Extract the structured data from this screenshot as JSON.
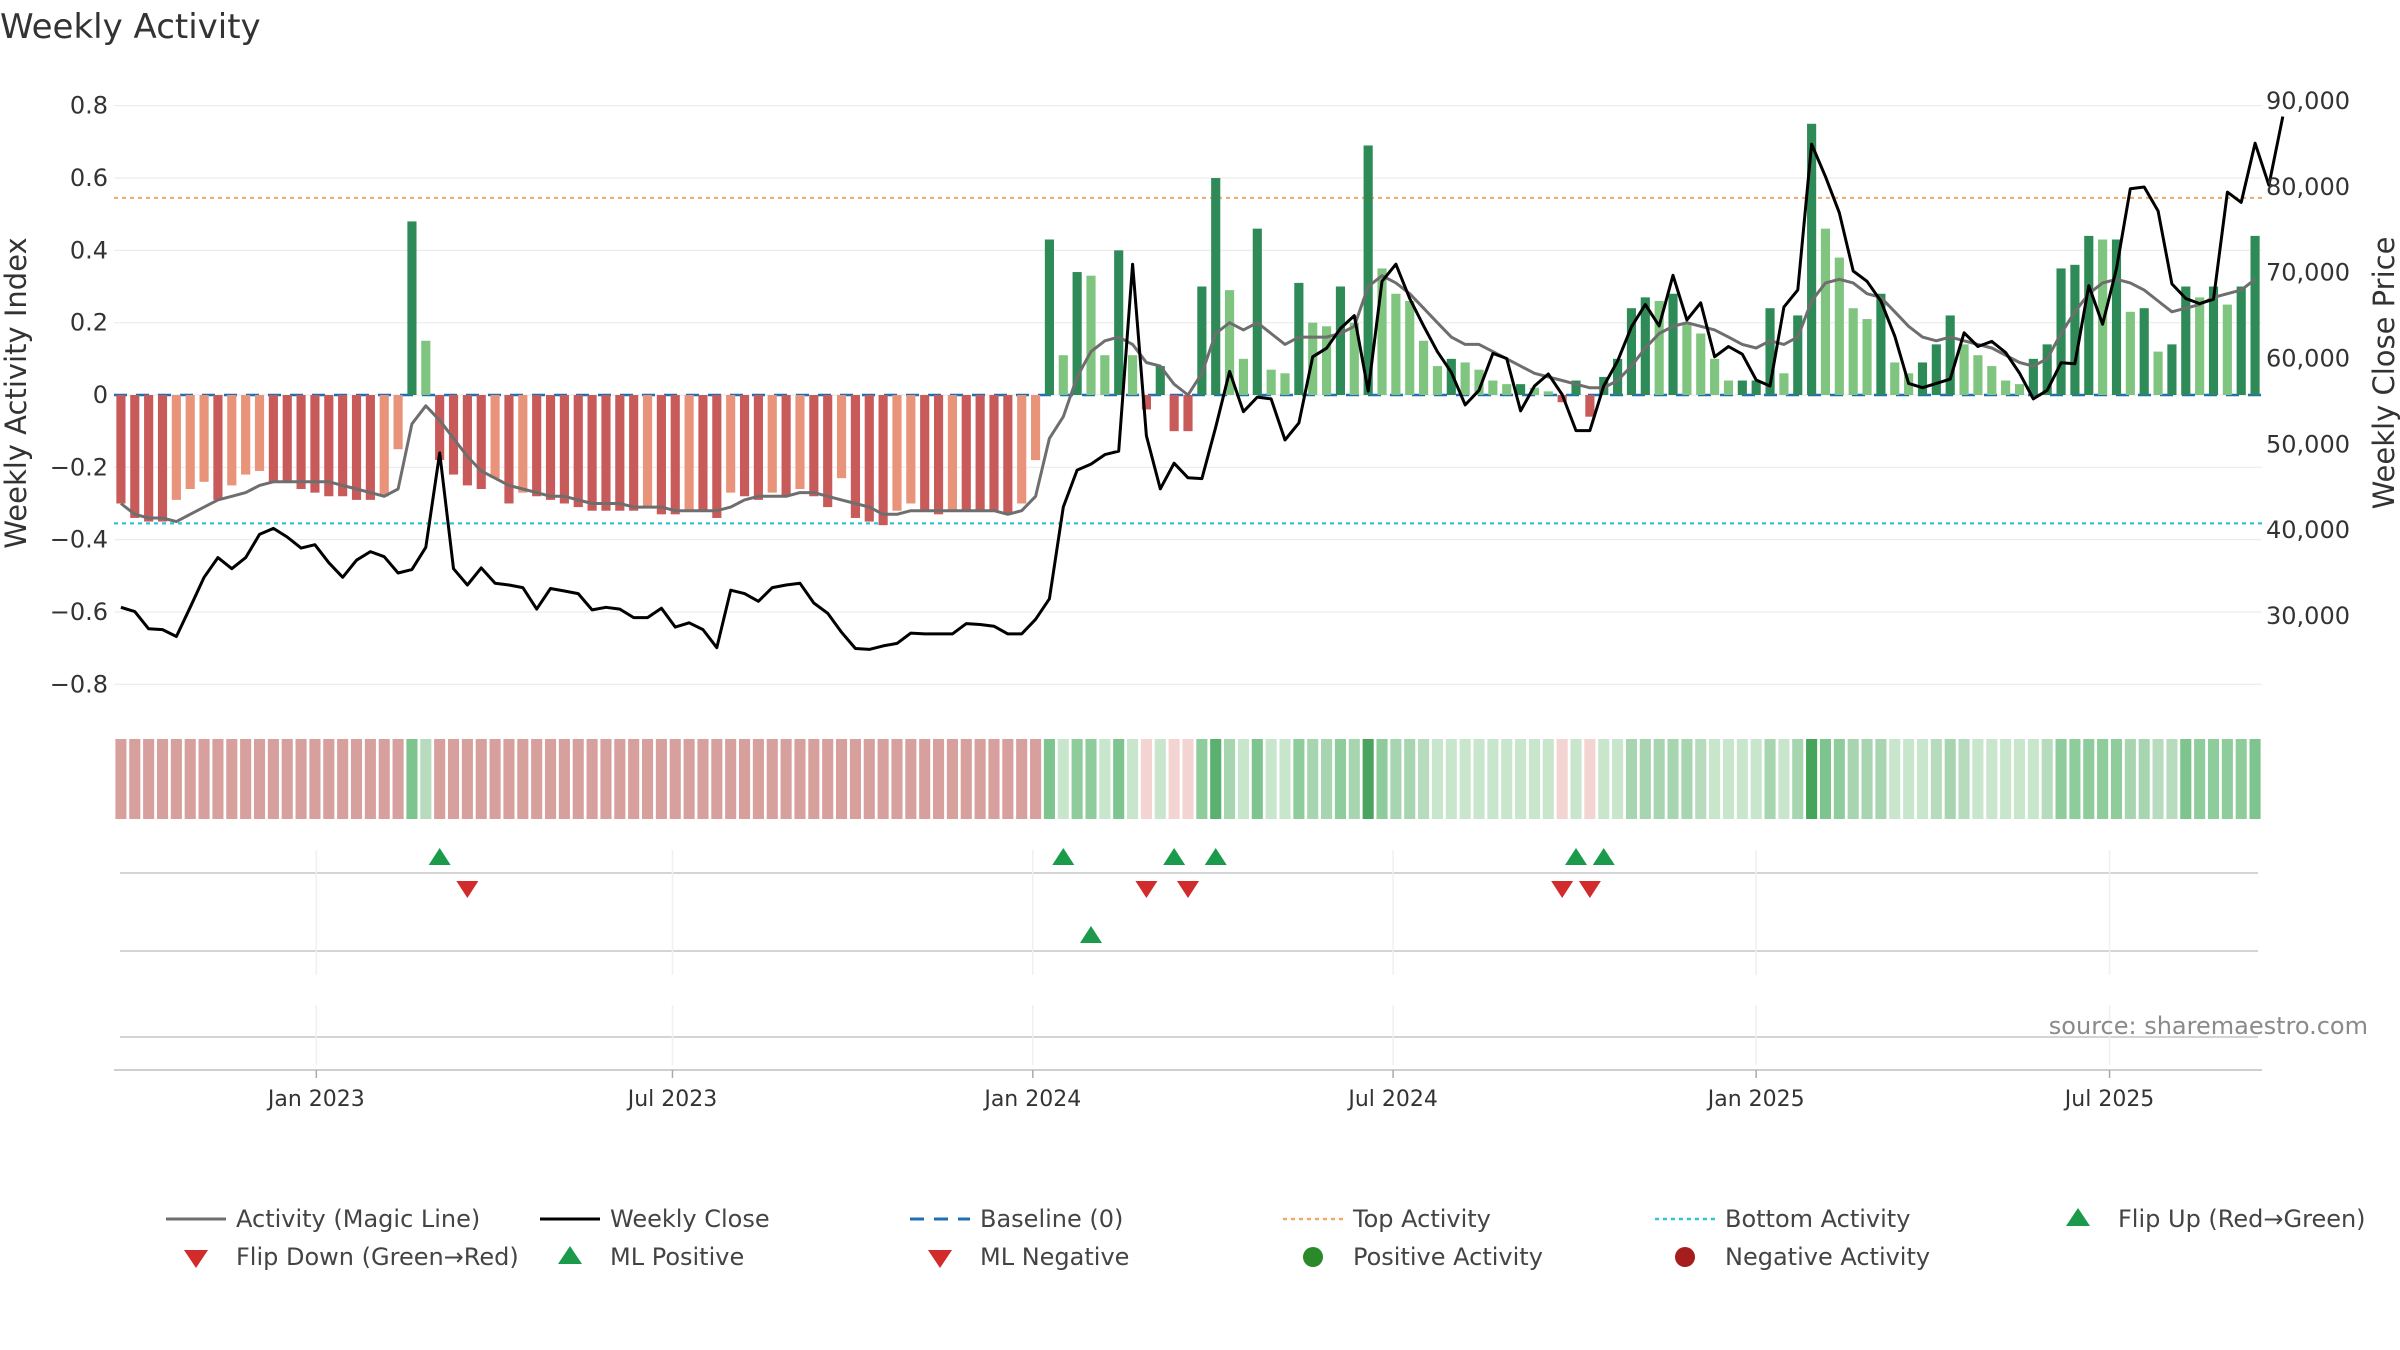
{
  "chart_data": {
    "type": "bar",
    "title": "Weekly Activity",
    "ylabel": "Weekly Activity Index",
    "y2label": "Weekly Close Price",
    "ylim": [
      -0.86,
      0.86
    ],
    "y2lim": [
      19500,
      92000
    ],
    "yticks": [
      {
        "v": 0.8,
        "label": "0.8"
      },
      {
        "v": 0.6,
        "label": "0.6"
      },
      {
        "v": 0.4,
        "label": "0.4"
      },
      {
        "v": 0.2,
        "label": "0.2"
      },
      {
        "v": 0,
        "label": "0"
      },
      {
        "v": -0.2,
        "label": "−0.2"
      },
      {
        "v": -0.4,
        "label": "−0.4"
      },
      {
        "v": -0.6,
        "label": "−0.6"
      },
      {
        "v": -0.8,
        "label": "−0.8"
      }
    ],
    "y2ticks": [
      {
        "v": 90000,
        "label": "90,000"
      },
      {
        "v": 80000,
        "label": "80,000"
      },
      {
        "v": 70000,
        "label": "70,000"
      },
      {
        "v": 60000,
        "label": "60,000"
      },
      {
        "v": 50000,
        "label": "50,000"
      },
      {
        "v": 40000,
        "label": "40,000"
      },
      {
        "v": 30000,
        "label": "30,000"
      }
    ],
    "x_start_week": 0,
    "x_end_week": 155,
    "xticks": [
      {
        "label": "Jan 2023",
        "week": 14.1
      },
      {
        "label": "Jul 2023",
        "week": 39.8
      },
      {
        "label": "Jan 2024",
        "week": 65.8
      },
      {
        "label": "Jul 2024",
        "week": 91.8
      },
      {
        "label": "Jan 2025",
        "week": 118.0
      },
      {
        "label": "Jul 2025",
        "week": 143.5
      }
    ],
    "top_activity": 0.545,
    "bottom_activity": -0.355,
    "baseline": 0,
    "activity": [
      -0.3,
      -0.34,
      -0.35,
      -0.35,
      -0.29,
      -0.26,
      -0.24,
      -0.29,
      -0.25,
      -0.22,
      -0.21,
      -0.24,
      -0.24,
      -0.26,
      -0.27,
      -0.28,
      -0.28,
      -0.29,
      -0.29,
      -0.28,
      -0.15,
      0.48,
      0.15,
      -0.18,
      -0.22,
      -0.25,
      -0.26,
      -0.23,
      -0.3,
      -0.27,
      -0.28,
      -0.29,
      -0.3,
      -0.31,
      -0.32,
      -0.32,
      -0.32,
      -0.32,
      -0.31,
      -0.33,
      -0.33,
      -0.32,
      -0.32,
      -0.34,
      -0.27,
      -0.28,
      -0.29,
      -0.27,
      -0.28,
      -0.26,
      -0.28,
      -0.31,
      -0.23,
      -0.34,
      -0.35,
      -0.36,
      -0.32,
      -0.3,
      -0.32,
      -0.33,
      -0.32,
      -0.32,
      -0.32,
      -0.32,
      -0.33,
      -0.3,
      -0.18,
      0.43,
      0.11,
      0.34,
      0.33,
      0.11,
      0.4,
      0.11,
      -0.04,
      0.08,
      -0.1,
      -0.1,
      0.3,
      0.6,
      0.29,
      0.1,
      0.46,
      0.07,
      0.06,
      0.31,
      0.2,
      0.19,
      0.3,
      0.2,
      0.69,
      0.35,
      0.28,
      0.26,
      0.15,
      0.08,
      0.1,
      0.09,
      0.07,
      0.04,
      0.03,
      0.03,
      0.02,
      0.01,
      -0.02,
      0.04,
      -0.06,
      0.05,
      0.1,
      0.24,
      0.27,
      0.26,
      0.28,
      0.2,
      0.17,
      0.1,
      0.04,
      0.04,
      0.04,
      0.24,
      0.06,
      0.22,
      0.75,
      0.46,
      0.38,
      0.24,
      0.21,
      0.28,
      0.09,
      0.06,
      0.09,
      0.14,
      0.22,
      0.14,
      0.11,
      0.08,
      0.04,
      0.03,
      0.1,
      0.14,
      0.35,
      0.36,
      0.44,
      0.43,
      0.43,
      0.23,
      0.24,
      0.12,
      0.14,
      0.3,
      0.27,
      0.3,
      0.25,
      0.3,
      0.44
    ],
    "magic_line": [
      -0.3,
      -0.33,
      -0.34,
      -0.34,
      -0.35,
      -0.33,
      -0.31,
      -0.29,
      -0.28,
      -0.27,
      -0.25,
      -0.24,
      -0.24,
      -0.24,
      -0.24,
      -0.24,
      -0.25,
      -0.26,
      -0.27,
      -0.28,
      -0.26,
      -0.08,
      -0.03,
      -0.07,
      -0.12,
      -0.17,
      -0.21,
      -0.23,
      -0.25,
      -0.26,
      -0.27,
      -0.28,
      -0.28,
      -0.29,
      -0.3,
      -0.3,
      -0.3,
      -0.31,
      -0.31,
      -0.31,
      -0.32,
      -0.32,
      -0.32,
      -0.32,
      -0.31,
      -0.29,
      -0.28,
      -0.28,
      -0.28,
      -0.27,
      -0.27,
      -0.28,
      -0.29,
      -0.3,
      -0.31,
      -0.33,
      -0.33,
      -0.32,
      -0.32,
      -0.32,
      -0.32,
      -0.32,
      -0.32,
      -0.32,
      -0.33,
      -0.32,
      -0.28,
      -0.12,
      -0.06,
      0.05,
      0.12,
      0.15,
      0.16,
      0.14,
      0.09,
      0.08,
      0.03,
      0.0,
      0.06,
      0.17,
      0.2,
      0.18,
      0.2,
      0.17,
      0.14,
      0.16,
      0.16,
      0.16,
      0.17,
      0.19,
      0.3,
      0.33,
      0.31,
      0.28,
      0.24,
      0.2,
      0.16,
      0.14,
      0.14,
      0.12,
      0.1,
      0.08,
      0.06,
      0.05,
      0.04,
      0.03,
      0.02,
      0.02,
      0.04,
      0.08,
      0.13,
      0.17,
      0.19,
      0.2,
      0.19,
      0.18,
      0.16,
      0.14,
      0.13,
      0.15,
      0.14,
      0.16,
      0.26,
      0.31,
      0.32,
      0.31,
      0.28,
      0.27,
      0.23,
      0.19,
      0.16,
      0.15,
      0.16,
      0.15,
      0.14,
      0.13,
      0.11,
      0.09,
      0.08,
      0.1,
      0.17,
      0.23,
      0.28,
      0.31,
      0.32,
      0.31,
      0.29,
      0.26,
      0.23,
      0.24,
      0.25,
      0.27,
      0.28,
      0.29,
      0.32
    ],
    "weekly_close": [
      31000,
      30500,
      28500,
      28400,
      27600,
      31000,
      34500,
      36800,
      35500,
      36800,
      39500,
      40200,
      39200,
      37900,
      38300,
      36200,
      34500,
      36500,
      37500,
      36900,
      35000,
      35400,
      38000,
      49000,
      35500,
      33600,
      35600,
      33800,
      33600,
      33300,
      30800,
      33200,
      32900,
      32600,
      30700,
      31000,
      30800,
      29800,
      29800,
      30900,
      28700,
      29200,
      28400,
      26300,
      33000,
      32600,
      31700,
      33300,
      33600,
      33800,
      31500,
      30300,
      28100,
      26200,
      26100,
      26500,
      26800,
      28000,
      27900,
      27900,
      27900,
      29100,
      29000,
      28800,
      27900,
      27900,
      29600,
      32000,
      42700,
      47000,
      47700,
      48800,
      49200,
      71000,
      51000,
      44800,
      47800,
      46100,
      46000,
      52000,
      58500,
      53800,
      55500,
      55300,
      50500,
      52500,
      60200,
      61200,
      63500,
      65000,
      56200,
      69000,
      71000,
      67000,
      63800,
      60800,
      58400,
      54600,
      56300,
      60600,
      60000,
      53900,
      56800,
      58200,
      55800,
      51600,
      51600,
      56800,
      59700,
      63700,
      66300,
      63800,
      69700,
      64500,
      66500,
      60200,
      61400,
      60500,
      57500,
      56800,
      66000,
      68000,
      85000,
      81200,
      77000,
      70200,
      69000,
      66700,
      62600,
      57100,
      56600,
      57100,
      57600,
      63000,
      61400,
      62000,
      60700,
      58300,
      55300,
      56300,
      59500,
      59400,
      68500,
      64000,
      70500,
      79800,
      80000,
      77200,
      68700,
      67000,
      66400,
      66900,
      79400,
      78200,
      85100,
      80200,
      88200
    ],
    "shade_colors": [
      "#d7a09c",
      "#d7a09c",
      "#d7a09c",
      "#d7a09c",
      "#d7a09c",
      "#d7a09c",
      "#d7a09c",
      "#d7a09c",
      "#d7a09c",
      "#d7a09c",
      "#d7a09c",
      "#d7a09c",
      "#d7a09c",
      "#d7a09c",
      "#d7a09c",
      "#d7a09c",
      "#d7a09c",
      "#d7a09c",
      "#d7a09c",
      "#d7a09c",
      "#d7a09c",
      "#7ec48e",
      "#b6dcbd",
      "#d7a09c",
      "#d7a09c",
      "#d7a09c",
      "#d7a09c",
      "#d7a09c",
      "#d7a09c",
      "#d7a09c",
      "#d7a09c",
      "#d7a09c",
      "#d7a09c",
      "#d7a09c",
      "#d7a09c",
      "#d7a09c",
      "#d7a09c",
      "#d7a09c",
      "#d7a09c",
      "#d7a09c",
      "#d7a09c",
      "#d7a09c",
      "#d7a09c",
      "#d7a09c",
      "#d7a09c",
      "#d7a09c",
      "#d7a09c",
      "#d7a09c",
      "#d7a09c",
      "#d7a09c",
      "#d7a09c",
      "#d7a09c",
      "#d7a09c",
      "#d7a09c",
      "#d7a09c",
      "#d7a09c",
      "#d7a09c",
      "#d7a09c",
      "#d7a09c",
      "#d7a09c",
      "#d7a09c",
      "#d7a09c",
      "#d7a09c",
      "#d7a09c",
      "#d7a09c",
      "#d7a09c",
      "#d7a09c",
      "#7ec48e",
      "#c8e6cc",
      "#8fcc9c",
      "#8fcc9c",
      "#c8e6cc",
      "#7ec48e",
      "#c8e6cc",
      "#f3d4d2",
      "#c8e6cc",
      "#f3d4d2",
      "#f3d4d2",
      "#8fcc9c",
      "#5ab06e",
      "#a6d5b0",
      "#c8e6cc",
      "#7ec48e",
      "#c8e6cc",
      "#c8e6cc",
      "#8fcc9c",
      "#a6d5b0",
      "#a6d5b0",
      "#8fcc9c",
      "#a6d5b0",
      "#4aa35f",
      "#8fcc9c",
      "#a6d5b0",
      "#a6d5b0",
      "#b6dcbd",
      "#c8e6cc",
      "#c8e6cc",
      "#c8e6cc",
      "#c8e6cc",
      "#c8e6cc",
      "#c8e6cc",
      "#c8e6cc",
      "#c8e6cc",
      "#c8e6cc",
      "#f3d4d2",
      "#c8e6cc",
      "#f3d4d2",
      "#c8e6cc",
      "#c8e6cc",
      "#a6d5b0",
      "#a6d5b0",
      "#a6d5b0",
      "#a6d5b0",
      "#a6d5b0",
      "#b6dcbd",
      "#c8e6cc",
      "#c8e6cc",
      "#c8e6cc",
      "#c8e6cc",
      "#a6d5b0",
      "#c8e6cc",
      "#a6d5b0",
      "#45a35a",
      "#7ec48e",
      "#8fcc9c",
      "#a6d5b0",
      "#a6d5b0",
      "#a6d5b0",
      "#c8e6cc",
      "#c8e6cc",
      "#c8e6cc",
      "#b6dcbd",
      "#a6d5b0",
      "#b6dcbd",
      "#c8e6cc",
      "#c8e6cc",
      "#c8e6cc",
      "#c8e6cc",
      "#c8e6cc",
      "#b6dcbd",
      "#8fcc9c",
      "#8fcc9c",
      "#8fcc9c",
      "#8fcc9c",
      "#8fcc9c",
      "#a6d5b0",
      "#a6d5b0",
      "#b6dcbd",
      "#b6dcbd",
      "#7ec48e",
      "#8fcc9c",
      "#8fcc9c",
      "#8fcc9c",
      "#8fcc9c",
      "#7ec48e"
    ],
    "flip_up_weeks": [
      23,
      68,
      76,
      79,
      105,
      107
    ],
    "flip_down_weeks": [
      25,
      74,
      77,
      104,
      106
    ],
    "ml_positive_weeks": [
      70
    ],
    "ml_negative_weeks": [],
    "legend": [
      {
        "key": "magic",
        "label": "Activity (Magic Line)"
      },
      {
        "key": "close",
        "label": "Weekly Close"
      },
      {
        "key": "baseline",
        "label": "Baseline (0)"
      },
      {
        "key": "top",
        "label": "Top Activity"
      },
      {
        "key": "bottom",
        "label": "Bottom Activity"
      },
      {
        "key": "flipup",
        "label": "Flip Up (Red→Green)"
      },
      {
        "key": "flipdown",
        "label": "Flip Down (Green→Red)"
      },
      {
        "key": "mlpos",
        "label": "ML Positive"
      },
      {
        "key": "mlneg",
        "label": "ML Negative"
      },
      {
        "key": "posact",
        "label": "Positive Activity"
      },
      {
        "key": "negact",
        "label": "Negative Activity"
      }
    ],
    "source": "source: sharemaestro.com"
  },
  "colors": {
    "pos_strong": "#2e8b57",
    "pos_light": "#7fc47f",
    "neg_strong": "#c85a5a",
    "neg_light": "#e8937a",
    "magic": "#6e6e6e",
    "close": "#000000",
    "baseline": "#1f6fb5",
    "top": "#f0a868",
    "bottom": "#2ec6d6",
    "flip_up": "#1a9a4a",
    "flip_down": "#d22b2b",
    "pos_dot": "#2a8a2a",
    "neg_dot": "#a51d1d",
    "grid": "#ececec"
  }
}
